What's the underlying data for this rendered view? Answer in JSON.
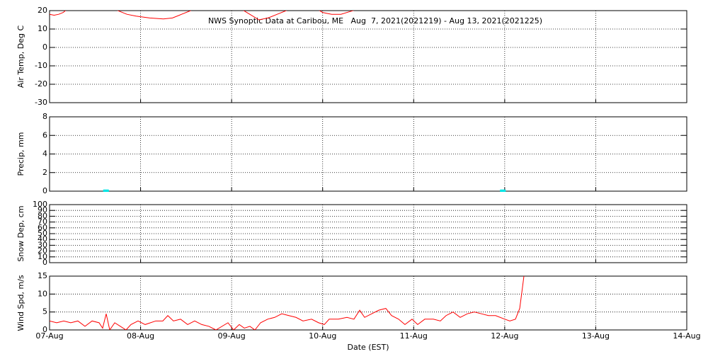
{
  "chart_data": [
    {
      "type": "line",
      "title": "NWS Synoptic Data at Caribou, ME   Aug  7, 2021(2021219) - Aug 13, 2021(2021225)",
      "ylabel": "Air Temp, Deg C",
      "ylim": [
        -30,
        20
      ],
      "yticks": [
        -30,
        -20,
        -10,
        0,
        10,
        20
      ],
      "xlim": [
        0,
        7
      ],
      "xticks": [
        0,
        1,
        2,
        3,
        4,
        5,
        6,
        7
      ],
      "grid": true,
      "series": [
        {
          "name": "Air Temp",
          "color": "#ff0000",
          "x": [
            0,
            0.05,
            0.1,
            0.15,
            0.2,
            0.3,
            0.5,
            0.6,
            0.7,
            0.75,
            0.85,
            0.95,
            1.1,
            1.25,
            1.35,
            1.45,
            1.55,
            1.65,
            1.85,
            2.0,
            2.1,
            2.2,
            2.3,
            2.4,
            2.5,
            2.65,
            2.8,
            2.9,
            3.0,
            3.1,
            3.2,
            3.3,
            3.4,
            3.6,
            3.8
          ],
          "values": [
            18,
            17.5,
            18,
            19,
            21,
            24,
            27,
            26,
            22,
            20,
            18,
            17,
            16,
            15.5,
            16,
            18,
            20,
            23,
            26,
            24,
            21,
            18,
            15,
            16,
            18,
            21,
            24,
            22,
            19,
            18,
            18,
            19.5,
            21,
            25,
            24
          ]
        }
      ]
    },
    {
      "type": "bar",
      "ylabel": "Precip, mm",
      "ylim": [
        0,
        8
      ],
      "yticks": [
        0,
        2,
        4,
        6,
        8
      ],
      "xlim": [
        0,
        7
      ],
      "xticks": [
        0,
        1,
        2,
        3,
        4,
        5,
        6,
        7
      ],
      "grid": true,
      "series": [
        {
          "name": "Precip",
          "color": "#00e5e5",
          "x": [
            0.62,
            4.98
          ],
          "values": [
            0.1,
            0.1
          ]
        }
      ]
    },
    {
      "type": "line",
      "ylabel": "Snow Dep, cm",
      "ylim": [
        0,
        100
      ],
      "yticks": [
        0,
        10,
        20,
        30,
        40,
        50,
        60,
        70,
        80,
        90,
        100
      ],
      "xlim": [
        0,
        7
      ],
      "xticks": [
        0,
        1,
        2,
        3,
        4,
        5,
        6,
        7
      ],
      "grid": true
    },
    {
      "type": "line",
      "ylabel": "Wind Spd, m/s",
      "xlabel": "Date (EST)",
      "ylim": [
        0,
        15
      ],
      "yticks": [
        0,
        5,
        10,
        15
      ],
      "xlim": [
        0,
        7
      ],
      "xticks": [
        {
          "value": 0,
          "label": "07-Aug"
        },
        {
          "value": 1,
          "label": "08-Aug"
        },
        {
          "value": 2,
          "label": "09-Aug"
        },
        {
          "value": 3,
          "label": "10-Aug"
        },
        {
          "value": 4,
          "label": "11-Aug"
        },
        {
          "value": 5,
          "label": "12-Aug"
        },
        {
          "value": 6,
          "label": "13-Aug"
        },
        {
          "value": 7,
          "label": "14-Aug"
        }
      ],
      "grid": true,
      "series": [
        {
          "name": "Wind Spd",
          "color": "#ff0000",
          "x": [
            0,
            0.078,
            0.156,
            0.233,
            0.311,
            0.389,
            0.467,
            0.544,
            0.583,
            0.622,
            0.661,
            0.716,
            0.778,
            0.84,
            0.894,
            0.972,
            1.05,
            1.167,
            1.244,
            1.299,
            1.361,
            1.439,
            1.517,
            1.594,
            1.672,
            1.75,
            1.828,
            1.96,
            2.022,
            2.084,
            2.139,
            2.201,
            2.256,
            2.318,
            2.396,
            2.473,
            2.551,
            2.629,
            2.707,
            2.784,
            2.878,
            2.956,
            3.018,
            3.072,
            3.173,
            3.267,
            3.344,
            3.407,
            3.461,
            3.539,
            3.617,
            3.694,
            3.757,
            3.834,
            3.904,
            3.982,
            4.044,
            4.122,
            4.216,
            4.293,
            4.356,
            4.433,
            4.511,
            4.589,
            4.667,
            4.744,
            4.822,
            4.9,
            5.001,
            5.056,
            5.118,
            5.165,
            5.196,
            5.211
          ],
          "values": [
            2.5,
            2,
            2.5,
            2,
            2.5,
            1,
            2.5,
            2,
            0.5,
            4.5,
            0,
            2,
            1,
            0,
            1.5,
            2.5,
            1.5,
            2.5,
            2.5,
            4,
            2.5,
            3,
            1.5,
            2.5,
            1.5,
            1,
            0,
            2,
            0,
            1.5,
            0.5,
            1,
            0,
            2,
            3,
            3.5,
            4.5,
            4,
            3.5,
            2.5,
            3,
            2,
            1.5,
            3,
            3,
            3.5,
            3,
            5.5,
            3.5,
            4.5,
            5.5,
            6,
            4,
            3,
            1.5,
            3,
            1.5,
            3,
            3,
            2.5,
            4,
            5,
            3.5,
            4.5,
            5,
            4.5,
            4,
            4,
            3,
            2.5,
            3,
            6,
            12,
            15
          ]
        }
      ]
    }
  ]
}
